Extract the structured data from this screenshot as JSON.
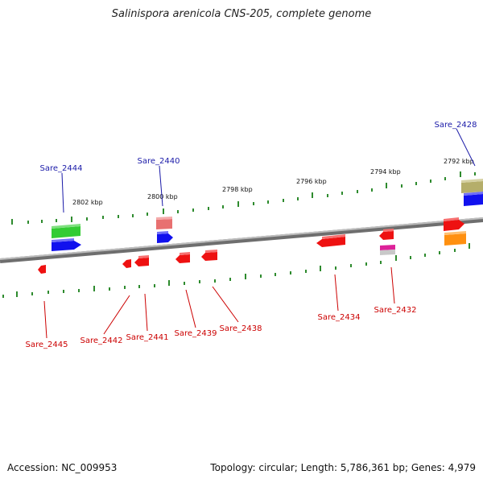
{
  "title": "Salinispora arenicola CNS-205, complete genome",
  "footer": {
    "accession": "Accession: NC_009953",
    "summary": "Topology: circular; Length: 5,786,361 bp; Genes: 4,979"
  },
  "scale_labels": [
    "2802 kbp",
    "2800 kbp",
    "2798 kbp",
    "2796 kbp",
    "2794 kbp",
    "2792 kbp"
  ],
  "genes_forward": [
    "Sare_2444",
    "Sare_2440",
    "Sare_2428"
  ],
  "genes_reverse": [
    "Sare_2445",
    "Sare_2442",
    "Sare_2441",
    "Sare_2439",
    "Sare_2438",
    "Sare_2434",
    "Sare_2432"
  ],
  "colors": {
    "forward_label": "#1a1aa8",
    "reverse_label": "#cc0000",
    "backbone": "#8a8a8a",
    "tick": "#2e8b2e",
    "cds_red": "#ee1111",
    "cds_blue": "#1111ee",
    "cds_green": "#33cc33",
    "cds_olive": "#b5ae6a",
    "cds_orange": "#ff9010",
    "cds_pink": "#e87070",
    "cds_magenta": "#dd2299"
  }
}
